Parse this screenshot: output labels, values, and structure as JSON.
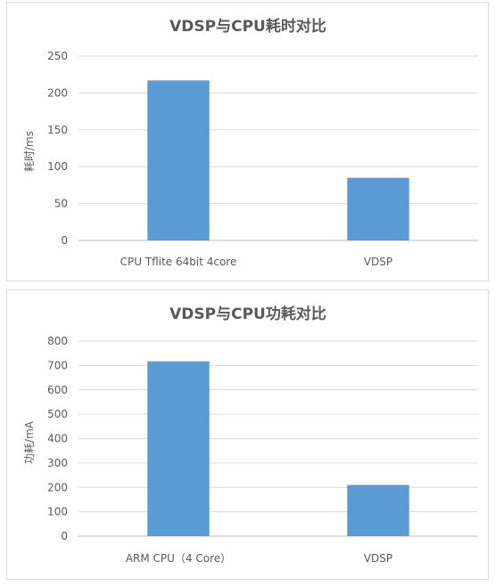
{
  "chart_data": [
    {
      "type": "bar",
      "title": "VDSP与CPU耗时对比",
      "ylabel": "耗时/ms",
      "xlabel": "",
      "categories": [
        "CPU Tflite 64bit 4core",
        "VDSP"
      ],
      "values": [
        217,
        85
      ],
      "ylim": [
        0,
        250
      ],
      "yticks": [
        0,
        50,
        100,
        150,
        200,
        250
      ],
      "grid": true,
      "bar_color": "#5b9bd5"
    },
    {
      "type": "bar",
      "title": "VDSP与CPU功耗对比",
      "ylabel": "功耗/mA",
      "xlabel": "",
      "categories": [
        "ARM CPU（4 Core）",
        "VDSP"
      ],
      "values": [
        717,
        210
      ],
      "ylim": [
        0,
        800
      ],
      "yticks": [
        0,
        100,
        200,
        300,
        400,
        500,
        600,
        700,
        800
      ],
      "grid": true,
      "bar_color": "#5b9bd5"
    }
  ]
}
